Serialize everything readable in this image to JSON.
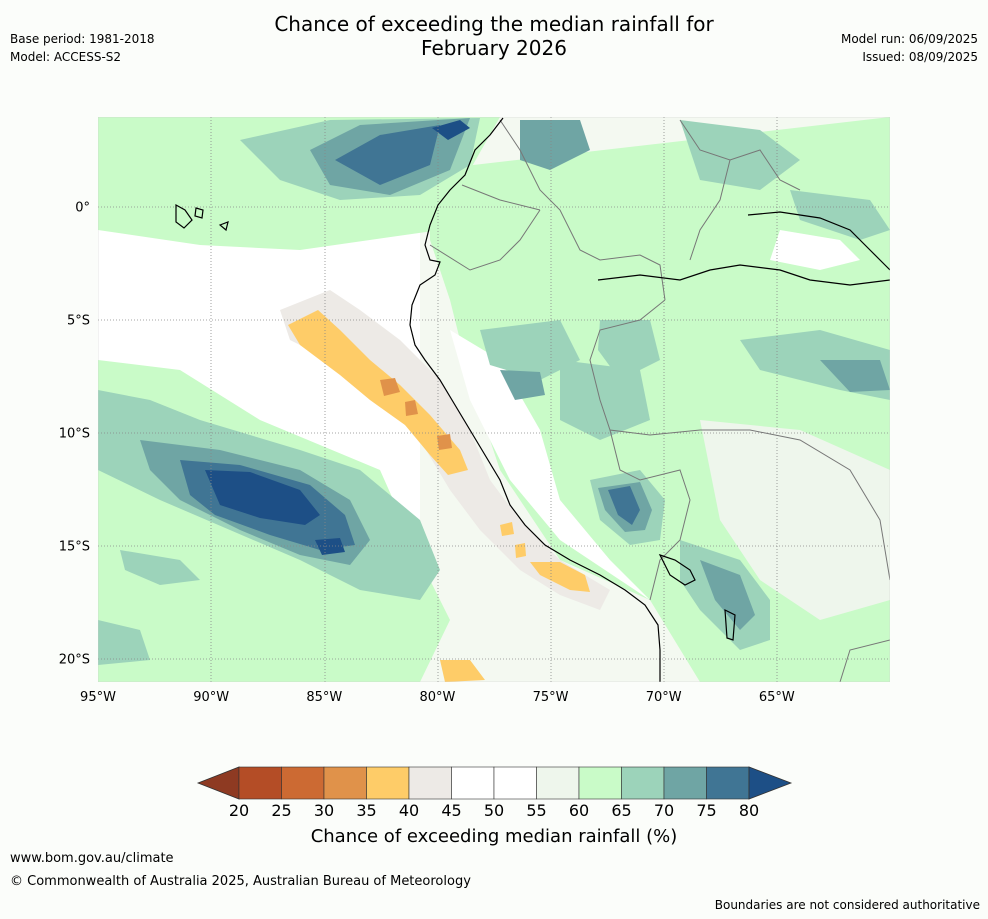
{
  "title_line1": "Chance of exceeding the median rainfall for",
  "title_line2": "February 2026",
  "base_period": "Base period: 1981-2018",
  "model": "Model: ACCESS-S2",
  "model_run": "Model run: 06/09/2025",
  "issued": "Issued: 08/09/2025",
  "map": {
    "lat_labels": [
      {
        "value": 0,
        "label": "0°"
      },
      {
        "value": -5,
        "label": "5°S"
      },
      {
        "value": -10,
        "label": "10°S"
      },
      {
        "value": -15,
        "label": "15°S"
      },
      {
        "value": -20,
        "label": "20°S"
      }
    ],
    "lon_labels": [
      {
        "value": -95,
        "label": "95°W"
      },
      {
        "value": -90,
        "label": "90°W"
      },
      {
        "value": -85,
        "label": "85°W"
      },
      {
        "value": -80,
        "label": "80°W"
      },
      {
        "value": -75,
        "label": "75°W"
      },
      {
        "value": -70,
        "label": "70°W"
      },
      {
        "value": -65,
        "label": "65°W"
      }
    ],
    "lon_range": [
      -95,
      -60
    ],
    "lat_range": [
      -21,
      4
    ]
  },
  "colorbar": {
    "title": "Chance of exceeding median rainfall (%)",
    "ticks": [
      "20",
      "25",
      "30",
      "35",
      "40",
      "45",
      "50",
      "55",
      "60",
      "65",
      "70",
      "75",
      "80"
    ],
    "low_color": "#8e3a22",
    "high_color": "#1d4f86",
    "colors": [
      "#b44d26",
      "#cc6a33",
      "#e0924a",
      "#fecc68",
      "#edeae6",
      "#ffffff",
      "#ffffff",
      "#eef6ec",
      "#c9fbc8",
      "#9cd3ba",
      "#6fa5a4",
      "#407594"
    ]
  },
  "footer": {
    "url": "www.bom.gov.au/climate",
    "copyright": "© Commonwealth of Australia 2025, Australian Bureau of Meteorology",
    "note": "Boundaries are not considered authoritative"
  }
}
